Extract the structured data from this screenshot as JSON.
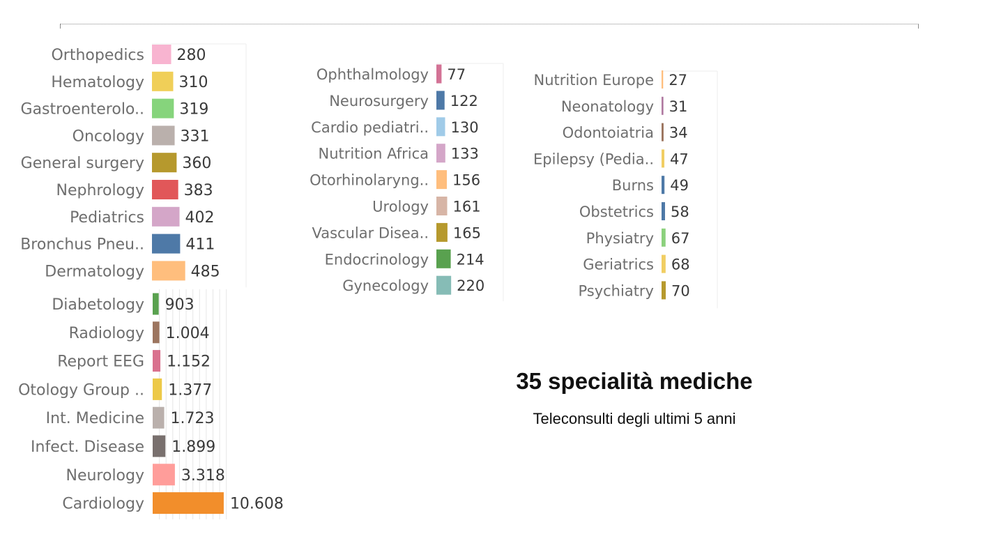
{
  "title": "35 specialità mediche",
  "subtitle": "Teleconsulti degli ultimi 5 anni",
  "chart_data": [
    {
      "type": "bar",
      "orientation": "horizontal",
      "categories": [
        "Diabetology",
        "Radiology",
        "Report EEG",
        "Otology Group ..",
        "Int. Medicine",
        "Infect. Disease",
        "Neurology",
        "Cardiology"
      ],
      "values": [
        903,
        1004,
        1152,
        1377,
        1723,
        1899,
        3318,
        10608
      ],
      "value_labels": [
        "903",
        "1.004",
        "1.152",
        "1.377",
        "1.723",
        "1.899",
        "3.318",
        "10.608"
      ],
      "colors": [
        "#59a14f",
        "#9c755f",
        "#d9718e",
        "#edc948",
        "#bab0ac",
        "#79706e",
        "#ff9d9a",
        "#f28e2b"
      ],
      "xlim": [
        0,
        11500
      ],
      "grid": true
    },
    {
      "type": "bar",
      "orientation": "horizontal",
      "categories": [
        "Orthopedics",
        "Hematology",
        "Gastroenterolo..",
        "Oncology",
        "General surgery",
        "Nephrology",
        "Pediatrics",
        "Bronchus Pneu..",
        "Dermatology"
      ],
      "values": [
        280,
        310,
        319,
        331,
        360,
        383,
        402,
        411,
        485
      ],
      "value_labels": [
        "280",
        "310",
        "319",
        "331",
        "360",
        "383",
        "402",
        "411",
        "485"
      ],
      "colors": [
        "#f8b4d0",
        "#f0cf58",
        "#86d47c",
        "#bab0ac",
        "#b6992d",
        "#e15759",
        "#d4a6c8",
        "#4e79a7",
        "#ffbe7d"
      ]
    },
    {
      "type": "bar",
      "orientation": "horizontal",
      "categories": [
        "Ophthalmology",
        "Neurosurgery",
        "Cardio pediatri..",
        "Nutrition Africa",
        "Otorhinolaryng..",
        "Urology",
        "Vascular Disea..",
        "Endocrinology",
        "Gynecology"
      ],
      "values": [
        77,
        122,
        130,
        133,
        156,
        161,
        165,
        214,
        220
      ],
      "value_labels": [
        "77",
        "122",
        "130",
        "133",
        "156",
        "161",
        "165",
        "214",
        "220"
      ],
      "colors": [
        "#d37295",
        "#4e79a7",
        "#a0cbe8",
        "#d4a6c8",
        "#ffbe7d",
        "#d7b5a6",
        "#b6992d",
        "#59a14f",
        "#86bcb6"
      ]
    },
    {
      "type": "bar",
      "orientation": "horizontal",
      "categories": [
        "Nutrition Europe",
        "Neonatology",
        "Odontoiatria",
        "Epilepsy (Pedia..",
        "Burns",
        "Obstetrics",
        "Physiatry",
        "Geriatrics",
        "Psychiatry"
      ],
      "values": [
        27,
        31,
        34,
        47,
        49,
        58,
        67,
        68,
        70
      ],
      "value_labels": [
        "27",
        "31",
        "34",
        "47",
        "49",
        "58",
        "67",
        "68",
        "70"
      ],
      "colors": [
        "#ffbe7d",
        "#b07aa1",
        "#9c755f",
        "#f1ce63",
        "#4e79a7",
        "#4e79a7",
        "#8cd17d",
        "#f1ce63",
        "#b6992d"
      ]
    }
  ]
}
